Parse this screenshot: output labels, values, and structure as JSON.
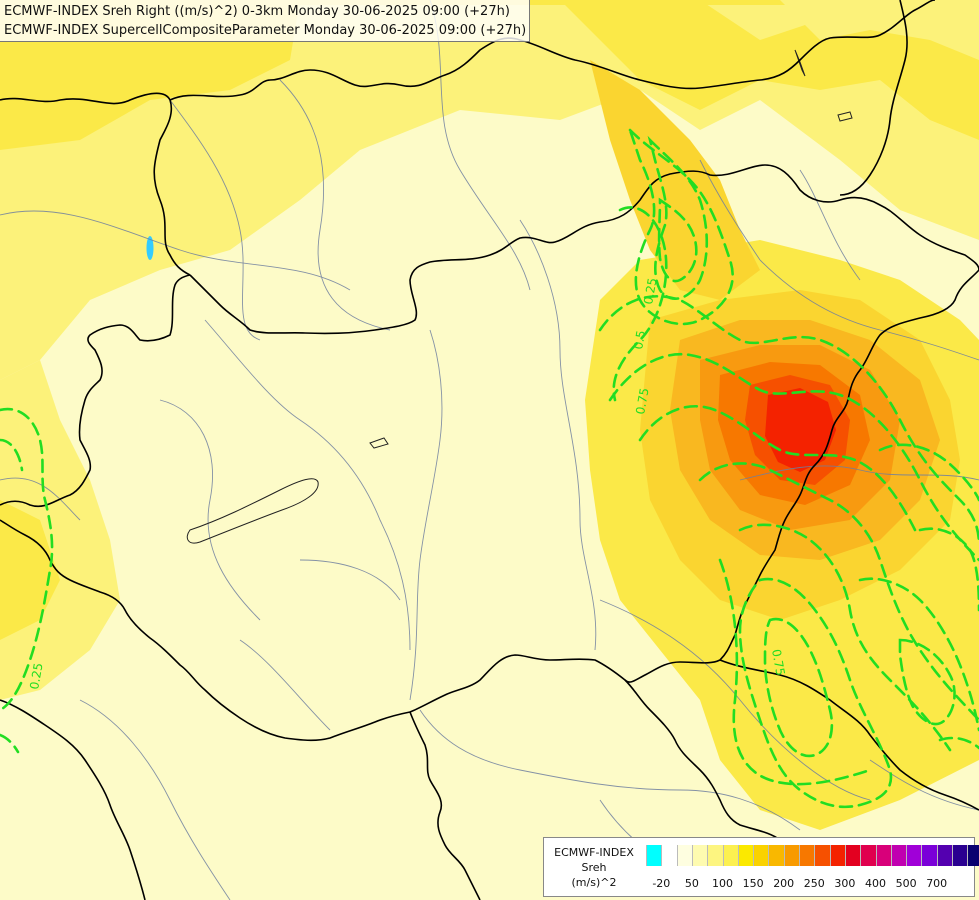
{
  "title": {
    "line1": "ECMWF-INDEX Sreh Right ((m/s)^2) 0-3km Monday 30-06-2025 09:00 (+27h)",
    "line2": "ECMWF-INDEX SupercellCompositeParameter Monday 30-06-2025 09:00 (+27h)"
  },
  "legend": {
    "line1": "ECMWF-INDEX",
    "line2": "Sreh",
    "line3": "(m/s)^2",
    "colors": [
      "#00ffff",
      "#ffffff",
      "#fefee0",
      "#fefbb0",
      "#fdf580",
      "#fcf050",
      "#fbe900",
      "#fad200",
      "#f9b800",
      "#f89a00",
      "#f77800",
      "#f65000",
      "#f42200",
      "#e30020",
      "#e0004e",
      "#d8007a",
      "#c000b0",
      "#a000d8",
      "#7a00d8",
      "#5400b0",
      "#2a0090",
      "#0a0070"
    ],
    "ticks": [
      {
        "label": "-20",
        "pos": 1
      },
      {
        "label": "50",
        "pos": 3
      },
      {
        "label": "100",
        "pos": 5
      },
      {
        "label": "150",
        "pos": 7
      },
      {
        "label": "200",
        "pos": 9
      },
      {
        "label": "250",
        "pos": 11
      },
      {
        "label": "300",
        "pos": 13
      },
      {
        "label": "400",
        "pos": 15
      },
      {
        "label": "500",
        "pos": 17
      },
      {
        "label": "700",
        "pos": 19
      }
    ]
  },
  "contour_labels": [
    "0.25",
    "0.5",
    "0.75"
  ]
}
